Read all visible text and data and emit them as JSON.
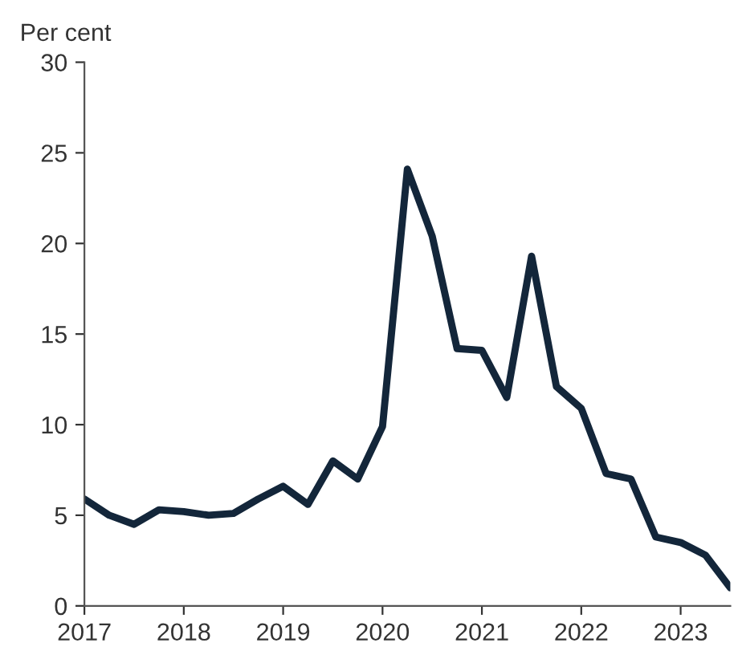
{
  "chart_data": {
    "type": "line",
    "ylabel": "Per cent",
    "x": [
      2017.0,
      2017.25,
      2017.5,
      2017.75,
      2018.0,
      2018.25,
      2018.5,
      2018.75,
      2019.0,
      2019.25,
      2019.5,
      2019.75,
      2020.0,
      2020.25,
      2020.5,
      2020.75,
      2021.0,
      2021.25,
      2021.5,
      2021.75,
      2022.0,
      2022.25,
      2022.5,
      2022.75,
      2023.0,
      2023.25,
      2023.5
    ],
    "series": [
      {
        "color": "#13263a",
        "values": [
          5.9,
          5.0,
          4.5,
          5.3,
          5.2,
          5.0,
          5.1,
          5.9,
          6.6,
          5.6,
          8.0,
          7.0,
          9.9,
          24.1,
          20.4,
          14.2,
          14.1,
          11.5,
          19.3,
          12.1,
          10.9,
          7.3,
          7.0,
          3.8,
          3.5,
          2.8,
          1.0
        ]
      }
    ],
    "xlim": [
      2017.0,
      2023.5
    ],
    "xticks": [
      2017,
      2018,
      2019,
      2020,
      2021,
      2022,
      2023
    ],
    "ylim": [
      0,
      30
    ],
    "yticks": [
      0,
      5,
      10,
      15,
      20,
      25,
      30
    ],
    "grid": false,
    "legend": false,
    "marker": "none",
    "line_style": "solid"
  }
}
